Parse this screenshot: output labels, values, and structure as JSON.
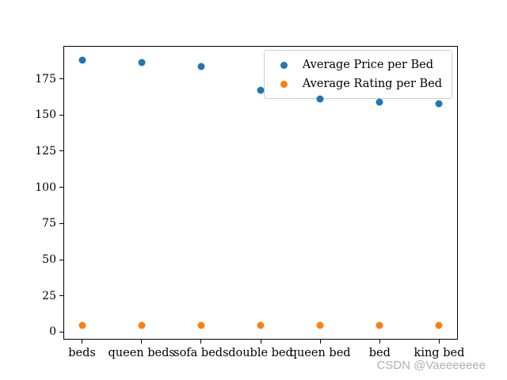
{
  "watermark": {
    "text": "CSDN @Vaeeeeeee",
    "color": "#b0b0b0"
  },
  "chart_data": {
    "type": "scatter",
    "title": "",
    "xlabel": "",
    "ylabel": "",
    "categories": [
      "beds",
      "queen beds",
      "sofa beds",
      "double bed",
      "queen bed",
      "bed",
      "king bed"
    ],
    "series": [
      {
        "name": "Average Price per Bed",
        "color": "#1f77b4",
        "values": [
          188,
          186,
          183.5,
          167,
          161,
          159,
          158
        ]
      },
      {
        "name": "Average Rating per Bed",
        "color": "#ff7f0e",
        "values": [
          4.8,
          4.8,
          4.8,
          4.8,
          4.8,
          4.8,
          4.8
        ]
      }
    ],
    "y_ticks": [
      0,
      25,
      50,
      75,
      100,
      125,
      150,
      175
    ],
    "ylim": [
      -4.7,
      197.2
    ],
    "xlim": [
      -0.3,
      6.3
    ],
    "grid": false,
    "legend_position": "upper right",
    "background": "#ffffff"
  }
}
